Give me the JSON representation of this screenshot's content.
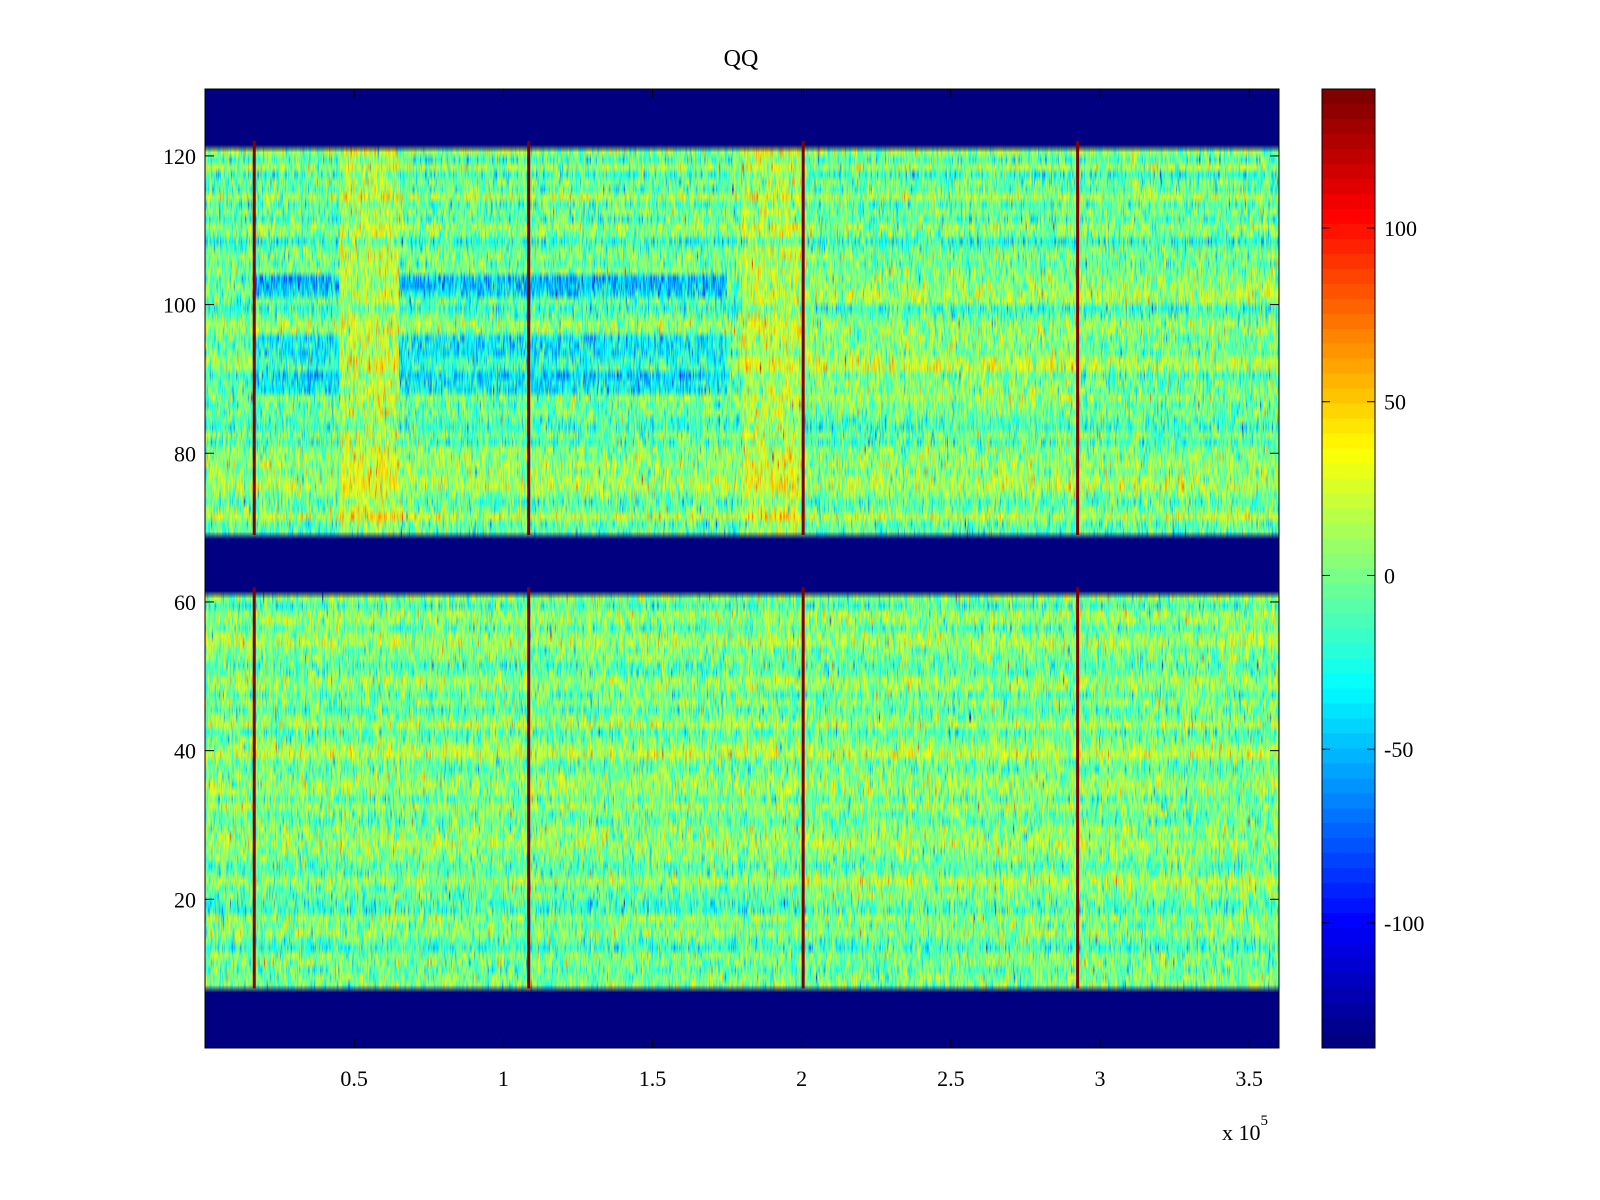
{
  "chart_data": {
    "type": "heatmap",
    "title": "QQ",
    "xlabel": "",
    "ylabel": "",
    "x_exponent_label": "x 10",
    "x_exponent": "5",
    "xlim": [
      0,
      360000
    ],
    "ylim": [
      0,
      129
    ],
    "x_ticks": [
      50000,
      100000,
      150000,
      200000,
      250000,
      300000,
      350000
    ],
    "x_tick_labels": [
      "0.5",
      "1",
      "1.5",
      "2",
      "2.5",
      "3",
      "3.5"
    ],
    "y_ticks": [
      20,
      40,
      60,
      80,
      100,
      120
    ],
    "y_tick_labels": [
      "20",
      "40",
      "60",
      "80",
      "100",
      "120"
    ],
    "colormap": "jet",
    "clim": [
      -136,
      140
    ],
    "colorbar_ticks": [
      -100,
      -50,
      0,
      50,
      100
    ],
    "colorbar_tick_labels": [
      "-100",
      "-50",
      "0",
      "50",
      "100"
    ],
    "background_value": -136,
    "data_row_bands": [
      [
        8,
        61
      ],
      [
        69,
        121
      ]
    ],
    "empty_row_bands": [
      [
        0,
        7
      ],
      [
        62,
        68
      ],
      [
        122,
        129
      ]
    ],
    "marker_columns_x": [
      16500,
      108500,
      200500,
      292500
    ],
    "marker_value": 140,
    "typical_value_range": [
      -60,
      60
    ],
    "regions": [
      {
        "x": [
          45000,
          65000
        ],
        "y": [
          69,
          121
        ],
        "value": 20
      },
      {
        "x": [
          180000,
          200000
        ],
        "y": [
          69,
          121
        ],
        "value": 20
      },
      {
        "x": [
          16500,
          45000
        ],
        "y": [
          101,
          104
        ],
        "value": -40
      },
      {
        "x": [
          65000,
          175000
        ],
        "y": [
          101,
          104
        ],
        "value": -40
      },
      {
        "x": [
          16500,
          45000
        ],
        "y": [
          88,
          96
        ],
        "value": -30
      },
      {
        "x": [
          65000,
          175000
        ],
        "y": [
          88,
          96
        ],
        "value": -30
      },
      {
        "x": [
          200500,
          360000
        ],
        "y": [
          100,
          104
        ],
        "value": 15
      },
      {
        "x": [
          200500,
          292500
        ],
        "y": [
          86,
          96
        ],
        "value": 10
      },
      {
        "x": [
          200500,
          360000
        ],
        "y": [
          18,
          24
        ],
        "value": 8
      }
    ]
  },
  "colors": {
    "background": "#ffffff",
    "axis": "#000000",
    "empty_cell": "#00008f",
    "marker_line": "#800000"
  }
}
